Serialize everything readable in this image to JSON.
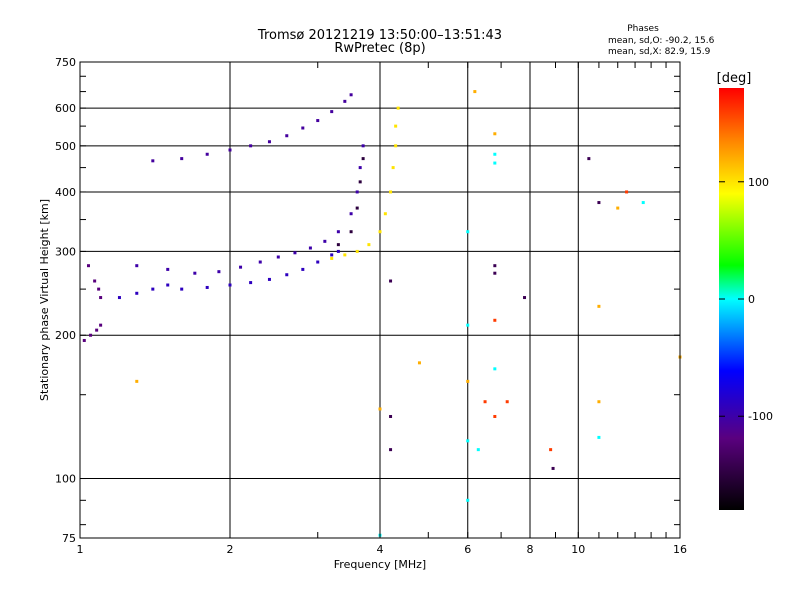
{
  "chart_data": {
    "type": "scatter",
    "title": "Tromsø 20121219 13:50:00–13:51:43",
    "subtitle": "RwPretec (8p)",
    "stats": {
      "heading": "Phases",
      "o_line": "mean, sd,O: -90.2, 15.6",
      "x_line": "mean, sd,X: 82.9, 15.9"
    },
    "xlabel": "Frequency [MHz]",
    "ylabel": "Stationary phase Virtual Height [km]",
    "x_scale": "log",
    "y_scale": "log",
    "xlim": [
      1,
      16
    ],
    "ylim": [
      75,
      750
    ],
    "x_ticks": [
      1,
      2,
      4,
      6,
      8,
      10,
      16
    ],
    "y_ticks": [
      75,
      100,
      200,
      300,
      400,
      500,
      600,
      750
    ],
    "x_grid": [
      2,
      4,
      6,
      8,
      10
    ],
    "y_grid": [
      100,
      200,
      300,
      400,
      500,
      600
    ],
    "grid": true,
    "colorbar": {
      "label": "[deg]",
      "min": -180,
      "max": 180,
      "ticks": [
        -100,
        0,
        100
      ],
      "placement": "right"
    },
    "traces": [
      {
        "phase": -120,
        "points": [
          [
            1.02,
            195
          ],
          [
            1.05,
            200
          ],
          [
            1.08,
            205
          ],
          [
            1.1,
            210
          ],
          [
            1.04,
            280
          ],
          [
            1.07,
            260
          ],
          [
            1.09,
            250
          ],
          [
            1.1,
            240
          ]
        ]
      },
      {
        "phase": -90,
        "points": [
          [
            1.2,
            240
          ],
          [
            1.3,
            245
          ],
          [
            1.4,
            250
          ],
          [
            1.5,
            255
          ],
          [
            1.6,
            250
          ],
          [
            1.8,
            252
          ],
          [
            2.0,
            255
          ],
          [
            2.2,
            258
          ],
          [
            2.4,
            262
          ],
          [
            2.6,
            268
          ],
          [
            2.8,
            275
          ],
          [
            3.0,
            285
          ],
          [
            3.2,
            295
          ],
          [
            3.3,
            300
          ]
        ]
      },
      {
        "phase": -100,
        "points": [
          [
            1.3,
            280
          ],
          [
            1.5,
            275
          ],
          [
            1.7,
            270
          ],
          [
            1.9,
            272
          ],
          [
            2.1,
            278
          ],
          [
            2.3,
            285
          ],
          [
            2.5,
            292
          ],
          [
            2.7,
            298
          ],
          [
            2.9,
            305
          ],
          [
            3.1,
            315
          ],
          [
            3.3,
            330
          ],
          [
            3.5,
            360
          ],
          [
            3.6,
            400
          ],
          [
            3.65,
            450
          ],
          [
            3.7,
            500
          ]
        ]
      },
      {
        "phase": -105,
        "points": [
          [
            1.4,
            465
          ],
          [
            1.6,
            470
          ],
          [
            1.8,
            480
          ],
          [
            2.0,
            490
          ],
          [
            2.2,
            500
          ],
          [
            2.4,
            510
          ],
          [
            2.6,
            525
          ],
          [
            2.8,
            545
          ],
          [
            3.0,
            565
          ],
          [
            3.2,
            590
          ],
          [
            3.4,
            620
          ],
          [
            3.5,
            640
          ]
        ]
      },
      {
        "phase": 100,
        "points": [
          [
            3.2,
            290
          ],
          [
            3.4,
            295
          ],
          [
            3.6,
            300
          ],
          [
            3.8,
            310
          ],
          [
            4.0,
            330
          ],
          [
            4.1,
            360
          ],
          [
            4.2,
            400
          ],
          [
            4.25,
            450
          ],
          [
            4.3,
            500
          ],
          [
            4.3,
            550
          ],
          [
            4.35,
            600
          ]
        ]
      },
      {
        "phase": -150,
        "points": [
          [
            3.3,
            310
          ],
          [
            3.5,
            330
          ],
          [
            3.6,
            370
          ],
          [
            3.65,
            420
          ],
          [
            3.7,
            470
          ]
        ]
      },
      {
        "phase": 0,
        "points": [
          [
            6.8,
            480
          ],
          [
            6.8,
            460
          ],
          [
            6.0,
            330
          ],
          [
            6.0,
            210
          ],
          [
            6.8,
            170
          ],
          [
            6.0,
            120
          ],
          [
            6.3,
            115
          ],
          [
            11,
            122
          ],
          [
            13.5,
            380
          ],
          [
            6.0,
            90
          ],
          [
            4.0,
            76
          ]
        ]
      },
      {
        "phase": 120,
        "points": [
          [
            1.3,
            160
          ],
          [
            4.0,
            140
          ],
          [
            4.8,
            175
          ],
          [
            6.0,
            160
          ],
          [
            12,
            370
          ],
          [
            11,
            230
          ],
          [
            11,
            145
          ],
          [
            16,
            180
          ],
          [
            6.2,
            650
          ],
          [
            6.8,
            530
          ]
        ]
      },
      {
        "phase": 160,
        "points": [
          [
            6.8,
            215
          ],
          [
            7.2,
            145
          ],
          [
            8.8,
            115
          ],
          [
            12.5,
            400
          ],
          [
            6.8,
            135
          ],
          [
            6.5,
            145
          ]
        ]
      },
      {
        "phase": -140,
        "points": [
          [
            4.2,
            260
          ],
          [
            4.2,
            135
          ],
          [
            4.2,
            115
          ],
          [
            6.8,
            270
          ],
          [
            6.8,
            280
          ],
          [
            7.8,
            240
          ],
          [
            10.5,
            470
          ],
          [
            11,
            380
          ],
          [
            8.9,
            105
          ]
        ]
      }
    ]
  }
}
